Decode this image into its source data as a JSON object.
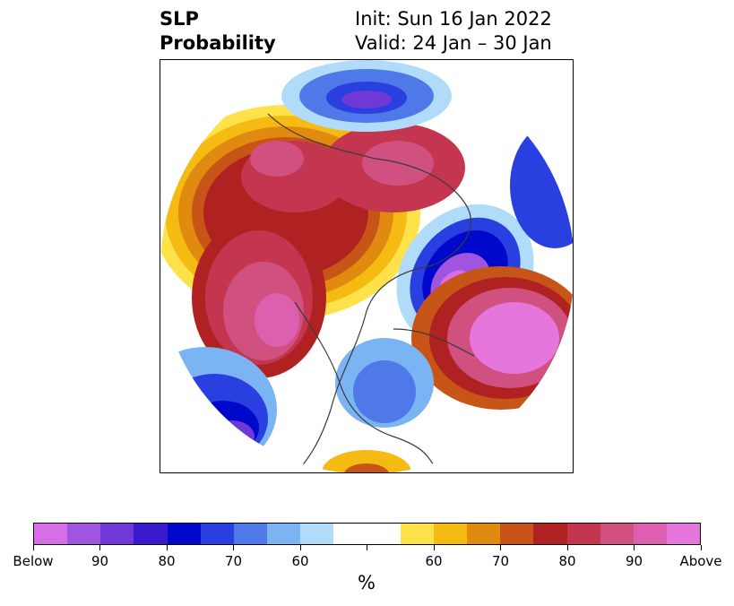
{
  "title": {
    "left_line1": "SLP",
    "left_line2": "Probability",
    "right_line1": "Init: Sun 16 Jan 2022",
    "right_line2": "Valid: 24 Jan – 30 Jan"
  },
  "colorbar": {
    "unit": "%",
    "colors": [
      "#d86ee6",
      "#a055e0",
      "#7038d6",
      "#3a18cc",
      "#0008cc",
      "#2a3fe0",
      "#4f78e8",
      "#7ab4f2",
      "#b0dcfa",
      "#ffffff",
      "#ffffff",
      "#ffe14a",
      "#f5bb12",
      "#e08b10",
      "#c85518",
      "#b02222",
      "#c43650",
      "#d05080",
      "#dc5fb0",
      "#e676dc"
    ],
    "tick_labels": [
      "Below",
      "90",
      "80",
      "70",
      "60",
      "",
      "60",
      "70",
      "80",
      "90",
      "Above"
    ]
  },
  "map": {
    "projection": "north-polar-stereographic",
    "variable": "sea-level-pressure-probability",
    "above_color": "#e676dc",
    "below_color": "#d86ee6"
  }
}
